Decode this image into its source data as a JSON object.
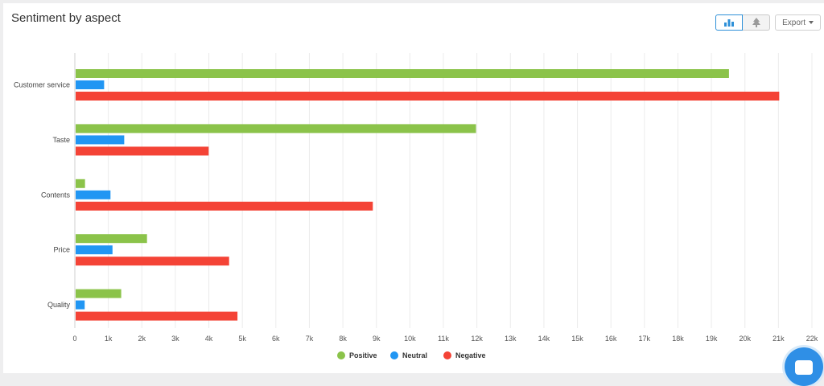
{
  "panel": {
    "title": "Sentiment by aspect",
    "export_label": "Export",
    "bar_view_icon": "bar-chart-icon",
    "tree_view_icon": "tree-icon"
  },
  "chat": {
    "icon": "chat-icon"
  },
  "chart_data": {
    "type": "bar",
    "orientation": "horizontal",
    "categories": [
      "Customer service",
      "Taste",
      "Contents",
      "Price",
      "Quality"
    ],
    "series": [
      {
        "name": "Positive",
        "color": "#8bc34a",
        "values": [
          19500,
          11950,
          280,
          2130,
          1360
        ]
      },
      {
        "name": "Neutral",
        "color": "#2196f3",
        "values": [
          850,
          1450,
          1040,
          1100,
          270
        ]
      },
      {
        "name": "Negative",
        "color": "#f44336",
        "values": [
          21000,
          3970,
          8870,
          4580,
          4830
        ]
      }
    ],
    "xlim": [
      0,
      22000
    ],
    "xticks": [
      0,
      1000,
      2000,
      3000,
      4000,
      5000,
      6000,
      7000,
      8000,
      9000,
      10000,
      11000,
      12000,
      13000,
      14000,
      15000,
      16000,
      17000,
      18000,
      19000,
      20000,
      21000,
      22000
    ],
    "xtick_labels": [
      "0",
      "1k",
      "2k",
      "3k",
      "4k",
      "5k",
      "6k",
      "7k",
      "8k",
      "9k",
      "10k",
      "11k",
      "12k",
      "13k",
      "14k",
      "15k",
      "16k",
      "17k",
      "18k",
      "19k",
      "20k",
      "21k",
      "22k"
    ],
    "grid": true,
    "legend_position": "bottom-center"
  }
}
